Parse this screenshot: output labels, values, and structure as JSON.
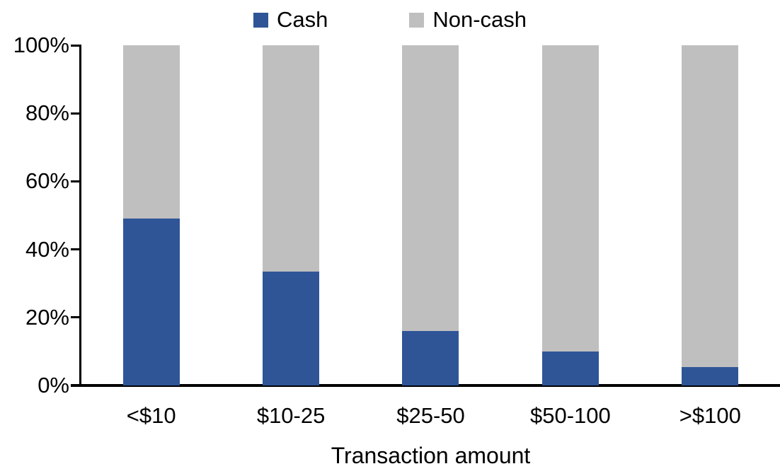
{
  "chart_data": {
    "type": "bar",
    "stacked": true,
    "stack_total": 100,
    "title": "",
    "xlabel": "Transaction amount",
    "ylabel": "",
    "ylim": [
      0,
      100
    ],
    "grid": false,
    "legend_position": "top-center",
    "categories": [
      "<$10",
      "$10-25",
      "$25-50",
      "$50-100",
      ">$100"
    ],
    "series": [
      {
        "name": "Cash",
        "color": "#2F5597",
        "values": [
          49,
          33.5,
          16,
          10,
          5.5
        ]
      },
      {
        "name": "Non-cash",
        "color": "#BFBFBF",
        "values": [
          51,
          66.5,
          84,
          90,
          94.5
        ]
      }
    ],
    "yticks": {
      "values": [
        0,
        20,
        40,
        60,
        80,
        100
      ],
      "labels": [
        "0%",
        "20%",
        "40%",
        "60%",
        "80%",
        "100%"
      ]
    }
  },
  "colors": {
    "axis": "#000000",
    "text": "#000000",
    "background": "#FFFFFF"
  }
}
